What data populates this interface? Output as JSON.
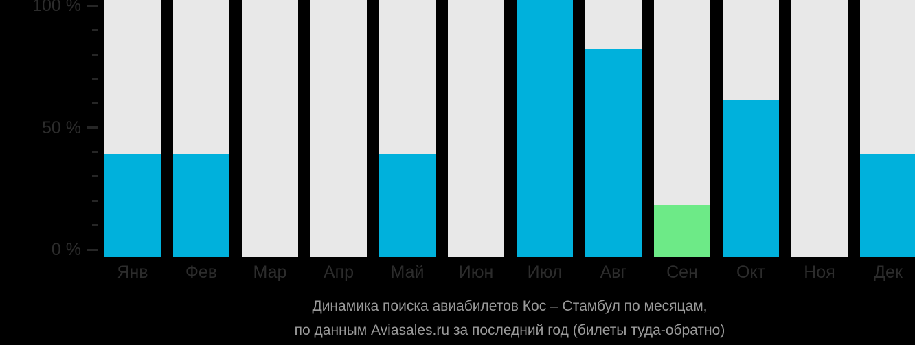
{
  "chart_data": {
    "type": "bar",
    "title_lines": [
      "Динамика поиска авиабилетов Кос – Стамбул по месяцам,",
      "по данным Aviasales.ru за последний год (билеты туда-обратно)"
    ],
    "categories": [
      "Янв",
      "Фев",
      "Мар",
      "Апр",
      "Май",
      "Июн",
      "Июл",
      "Авг",
      "Сен",
      "Окт",
      "Ноя",
      "Дек"
    ],
    "values": [
      40,
      40,
      0,
      0,
      40,
      0,
      100,
      81,
      20,
      61,
      0,
      40
    ],
    "bar_colors": [
      "#00b1dc",
      "#00b1dc",
      "#00b1dc",
      "#00b1dc",
      "#00b1dc",
      "#00b1dc",
      "#00b1dc",
      "#00b1dc",
      "#6dea87",
      "#00b1dc",
      "#00b1dc",
      "#00b1dc"
    ],
    "xlabel": "",
    "ylabel": "",
    "ylim": [
      0,
      100
    ],
    "grid": false,
    "legend": "none",
    "y_axis": {
      "range": [
        0,
        100
      ],
      "minor_step": 10,
      "ticks_labeled": [
        {
          "value": 0,
          "label": "0 %"
        },
        {
          "value": 50,
          "label": "50 %"
        },
        {
          "value": 100,
          "label": "100 %"
        }
      ]
    }
  },
  "colors": {
    "background": "#000000",
    "bar_track": "#e8e8e8",
    "bar_primary": "#00b1dc",
    "bar_highlight": "#6dea87",
    "axis_text": "#2c2c2c",
    "caption_text": "#9a9a9a"
  }
}
